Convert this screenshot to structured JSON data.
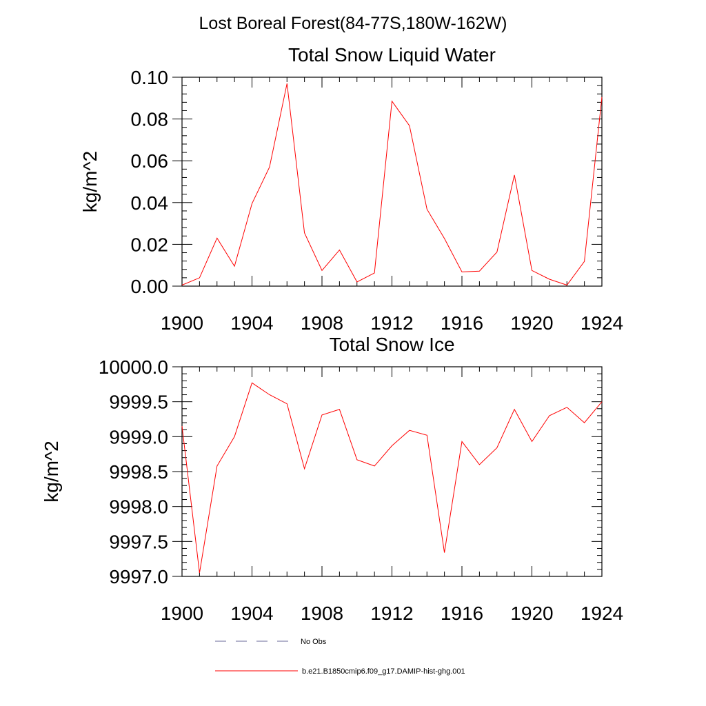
{
  "figure": {
    "title": "Lost Boreal Forest(84-77S,180W-162W)"
  },
  "chart_data": [
    {
      "type": "line",
      "title": "Total Snow Liquid Water",
      "xlabel": "",
      "ylabel": "kg/m^2",
      "xlim": [
        1900,
        1924
      ],
      "ylim": [
        0.0,
        0.1
      ],
      "xticks": [
        1900,
        1904,
        1908,
        1912,
        1916,
        1920,
        1924
      ],
      "xtick_labels": [
        "1900",
        "1904",
        "1908",
        "1912",
        "1916",
        "1920",
        "1924"
      ],
      "yticks": [
        0.0,
        0.02,
        0.04,
        0.06,
        0.08,
        0.1
      ],
      "ytick_labels": [
        "0.00",
        "0.02",
        "0.04",
        "0.06",
        "0.08",
        "0.10"
      ],
      "grid": false,
      "series": [
        {
          "name": "b.e21.B1850cmip6.f09_g17.DAMIP-hist-ghg.001",
          "color": "#ff0000",
          "x": [
            1900,
            1901,
            1902,
            1903,
            1904,
            1905,
            1906,
            1907,
            1908,
            1909,
            1910,
            1911,
            1912,
            1913,
            1914,
            1915,
            1916,
            1917,
            1918,
            1919,
            1920,
            1921,
            1922,
            1923,
            1924
          ],
          "y": [
            0.0005,
            0.004,
            0.023,
            0.0095,
            0.0395,
            0.057,
            0.097,
            0.0255,
            0.0075,
            0.0173,
            0.002,
            0.0063,
            0.0885,
            0.0768,
            0.0368,
            0.0228,
            0.0068,
            0.0072,
            0.0163,
            0.0532,
            0.0075,
            0.0033,
            0.0005,
            0.0118,
            0.0905
          ]
        }
      ]
    },
    {
      "type": "line",
      "title": "Total Snow Ice",
      "xlabel": "",
      "ylabel": "kg/m^2",
      "xlim": [
        1900,
        1924
      ],
      "ylim": [
        9997.0,
        10000.0
      ],
      "xticks": [
        1900,
        1904,
        1908,
        1912,
        1916,
        1920,
        1924
      ],
      "xtick_labels": [
        "1900",
        "1904",
        "1908",
        "1912",
        "1916",
        "1920",
        "1924"
      ],
      "yticks": [
        9997.0,
        9997.5,
        9998.0,
        9998.5,
        9999.0,
        9999.5,
        10000.0
      ],
      "ytick_labels": [
        "9997.0",
        "9997.5",
        "9998.0",
        "9998.5",
        "9999.0",
        "9999.5",
        "10000.0"
      ],
      "grid": false,
      "series": [
        {
          "name": "b.e21.B1850cmip6.f09_g17.DAMIP-hist-ghg.001",
          "color": "#ff0000",
          "x": [
            1900,
            1901,
            1902,
            1903,
            1904,
            1905,
            1906,
            1907,
            1908,
            1909,
            1910,
            1911,
            1912,
            1913,
            1914,
            1915,
            1916,
            1917,
            1918,
            1919,
            1920,
            1921,
            1922,
            1923,
            1924
          ],
          "y": [
            9999.15,
            9997.05,
            9998.58,
            9999.0,
            9999.77,
            9999.6,
            9999.47,
            9998.54,
            9999.31,
            9999.39,
            9998.67,
            9998.58,
            9998.87,
            9999.09,
            9999.02,
            9997.34,
            9998.93,
            9998.6,
            9998.84,
            9999.39,
            9998.93,
            9999.3,
            9999.42,
            9999.2,
            9999.5
          ]
        }
      ]
    }
  ],
  "legend": {
    "placement": "bottom",
    "items": [
      {
        "label": "No Obs",
        "style": "dashed",
        "color": "#6a6a9a"
      },
      {
        "label": "b.e21.B1850cmip6.f09_g17.DAMIP-hist-ghg.001",
        "style": "solid",
        "color": "#ff0000"
      }
    ]
  }
}
